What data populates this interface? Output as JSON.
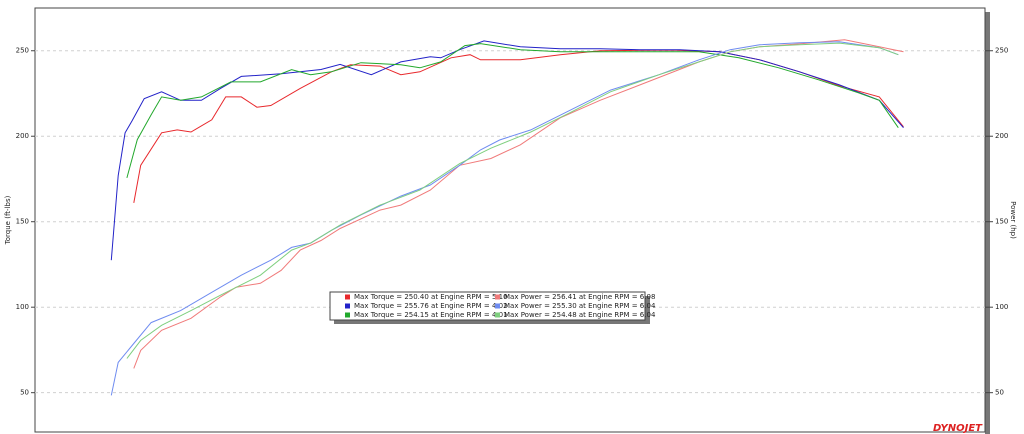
{
  "chart_data": {
    "type": "line",
    "y_label": "Torque (ft-lbs)",
    "y2_label": "Power (hp)",
    "watermark": "DYNOJET",
    "xlim": [
      1.5,
      6.98
    ],
    "ylim": [
      27,
      275
    ],
    "yticks": [
      50,
      100,
      150,
      200,
      250
    ],
    "y2lim": [
      27,
      275
    ],
    "y2ticks": [
      50,
      100,
      150,
      200,
      250
    ],
    "grid": true,
    "series": [
      {
        "name": "Max Torque = 250.40 at Engine RPM = 5.10",
        "color": "#e8282c",
        "x": [
          2.07,
          2.11,
          2.23,
          2.32,
          2.4,
          2.52,
          2.6,
          2.69,
          2.78,
          2.86,
          3.03,
          3.21,
          3.32,
          3.49,
          3.61,
          3.72,
          3.9,
          4.01,
          4.07,
          4.3,
          4.53,
          4.76,
          5.18,
          5.45,
          5.68,
          5.91,
          6.14,
          6.37,
          6.51
        ],
        "values": [
          161,
          183,
          202,
          203.7,
          202.5,
          209.6,
          223,
          223,
          217,
          218,
          228,
          237.7,
          241.8,
          241,
          236,
          237.7,
          245.9,
          247.7,
          244.7,
          244.7,
          247.7,
          250,
          250.4,
          249.4,
          244.7,
          237.7,
          229.5,
          223,
          205.5
        ]
      },
      {
        "name": "Max Torque = 255.76 at Engine RPM = 4.02",
        "color": "#2222c8",
        "x": [
          1.94,
          1.98,
          2.02,
          2.06,
          2.13,
          2.23,
          2.34,
          2.46,
          2.57,
          2.69,
          2.92,
          3.15,
          3.26,
          3.44,
          3.61,
          3.78,
          3.84,
          3.95,
          4.09,
          4.3,
          4.53,
          4.76,
          4.99,
          5.22,
          5.45,
          5.68,
          5.91,
          6.14,
          6.37,
          6.51
        ],
        "values": [
          127.5,
          177,
          202,
          209,
          222,
          226,
          221,
          221,
          228,
          235,
          236.5,
          239,
          242,
          236,
          243.5,
          246.5,
          245.9,
          250.6,
          255.76,
          252.3,
          251.2,
          251.2,
          250.6,
          250.6,
          249.4,
          244.7,
          237.7,
          230,
          221,
          205
        ]
      },
      {
        "name": "Max Torque = 254.15 at Engine RPM = 4.01",
        "color": "#22a82c",
        "x": [
          2.03,
          2.09,
          2.17,
          2.23,
          2.34,
          2.46,
          2.63,
          2.8,
          2.98,
          3.09,
          3.21,
          3.38,
          3.61,
          3.72,
          3.84,
          3.98,
          4.07,
          4.3,
          4.53,
          4.99,
          5.33,
          5.56,
          5.79,
          6.02,
          6.25,
          6.37,
          6.48
        ],
        "values": [
          175.6,
          198,
          212.5,
          223,
          221,
          223,
          231.8,
          231.8,
          238.9,
          236,
          237.7,
          243,
          241.8,
          240,
          243.5,
          253,
          254.15,
          250.6,
          249.4,
          249.4,
          249.4,
          245.9,
          240,
          233,
          225.4,
          221,
          205
        ]
      },
      {
        "name": "Max Power = 256.41 at Engine RPM = 6.08",
        "color": "#f07a7a",
        "axis": "y2",
        "x": [
          2.07,
          2.11,
          2.23,
          2.4,
          2.57,
          2.66,
          2.8,
          2.92,
          3.03,
          3.15,
          3.26,
          3.49,
          3.61,
          3.78,
          3.95,
          4.13,
          4.3,
          4.53,
          4.76,
          4.99,
          5.33,
          5.51,
          5.68,
          5.91,
          6.17,
          6.37,
          6.51
        ],
        "values": [
          64.2,
          74.7,
          86.5,
          93.5,
          106,
          111.7,
          114,
          121.6,
          133.4,
          139,
          146,
          156.8,
          159.7,
          168.5,
          183,
          187,
          195,
          210.8,
          221,
          230,
          243.5,
          249.4,
          252.3,
          254,
          256.41,
          252.3,
          249.4
        ]
      },
      {
        "name": "Max Power = 255.30 at Engine RPM = 6.04",
        "color": "#6f8cf0",
        "axis": "y2",
        "x": [
          1.94,
          1.98,
          2.06,
          2.17,
          2.34,
          2.52,
          2.69,
          2.86,
          2.98,
          3.09,
          3.21,
          3.38,
          3.61,
          3.78,
          3.95,
          4.07,
          4.18,
          4.36,
          4.59,
          4.82,
          5.1,
          5.33,
          5.51,
          5.68,
          5.91,
          6.14,
          6.37,
          6.48
        ],
        "values": [
          48.4,
          67.7,
          77.6,
          91,
          98,
          108.7,
          118.7,
          127.5,
          135,
          137.5,
          145,
          154,
          165,
          171.5,
          183,
          192,
          197.8,
          203.7,
          215.4,
          227,
          236,
          244.7,
          250.6,
          253.5,
          254.7,
          255.3,
          251.8,
          247.7
        ]
      },
      {
        "name": "Max Power = 254.48 at Engine RPM = 6.04",
        "color": "#7fcf7f",
        "axis": "y2",
        "x": [
          2.03,
          2.11,
          2.23,
          2.4,
          2.57,
          2.8,
          2.98,
          3.09,
          3.26,
          3.49,
          3.72,
          3.95,
          4.13,
          4.36,
          4.59,
          4.82,
          5.1,
          5.33,
          5.51,
          5.68,
          5.91,
          6.14,
          6.37,
          6.48
        ],
        "values": [
          70,
          80.6,
          89.4,
          98,
          107,
          118.7,
          133.4,
          137.5,
          148,
          159.7,
          168.5,
          184,
          193,
          202.5,
          214,
          226,
          236,
          243.5,
          249.4,
          252.3,
          253.5,
          254.48,
          251.8,
          247.7
        ]
      }
    ]
  }
}
